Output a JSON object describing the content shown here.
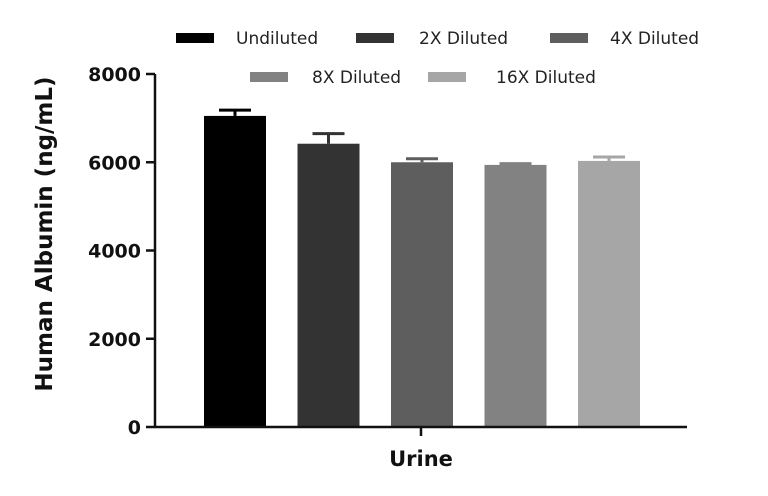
{
  "chart_data": {
    "type": "bar",
    "title": "",
    "xlabel": "Urine",
    "ylabel": "Human Albumin (ng/mL)",
    "ylim": [
      0,
      8000
    ],
    "yticks": [
      0,
      2000,
      4000,
      6000,
      8000
    ],
    "categories": [
      "Urine"
    ],
    "legend": {
      "position": "top"
    },
    "grid": false,
    "series": [
      {
        "name": "Undiluted",
        "values": [
          7050
        ],
        "error": [
          130
        ],
        "color": "#000000"
      },
      {
        "name": "2X Diluted",
        "values": [
          6420
        ],
        "error": [
          230
        ],
        "color": "#333333"
      },
      {
        "name": "4X Diluted",
        "values": [
          6000
        ],
        "error": [
          80
        ],
        "color": "#5e5e5e"
      },
      {
        "name": "8X Diluted",
        "values": [
          5940
        ],
        "error": [
          30
        ],
        "color": "#828282"
      },
      {
        "name": "16X Diluted",
        "values": [
          6030
        ],
        "error": [
          90
        ],
        "color": "#a6a6a6"
      }
    ]
  }
}
